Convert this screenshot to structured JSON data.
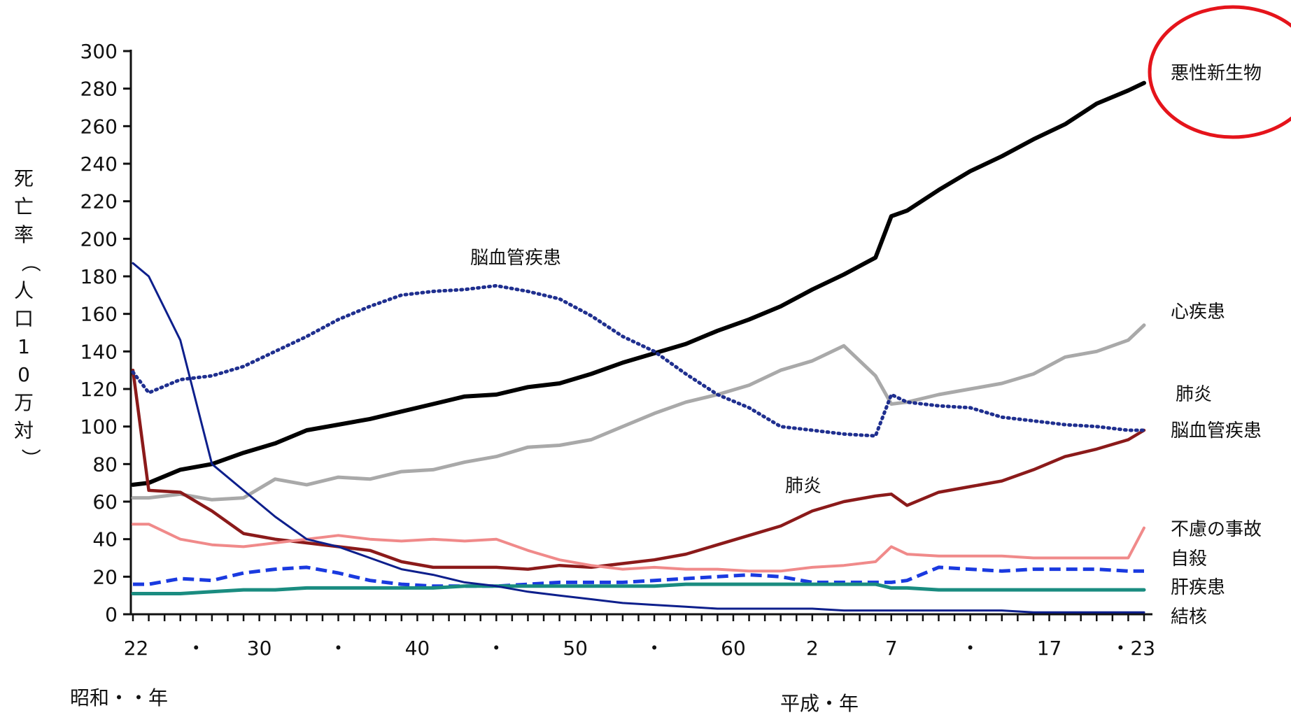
{
  "chart_data": {
    "type": "line",
    "ylabel": "死亡率（人口10万対）",
    "era_labels": {
      "showa": "昭和・・年",
      "heisei": "平成・年"
    },
    "x_tick_labels": [
      "22",
      "・",
      "30",
      "・",
      "40",
      "・",
      "50",
      "・",
      "60",
      "2",
      "7",
      "・",
      "17",
      "・23"
    ],
    "ylim": [
      0,
      300
    ],
    "yticks": [
      0,
      20,
      40,
      60,
      80,
      100,
      120,
      140,
      160,
      180,
      200,
      220,
      240,
      260,
      280,
      300
    ],
    "x": [
      1947,
      1948,
      1950,
      1952,
      1954,
      1956,
      1958,
      1960,
      1962,
      1964,
      1966,
      1968,
      1970,
      1972,
      1974,
      1976,
      1978,
      1980,
      1982,
      1984,
      1986,
      1988,
      1990,
      1992,
      1994,
      1995,
      1996,
      1998,
      2000,
      2002,
      2004,
      2006,
      2008,
      2010,
      2011
    ],
    "series": [
      {
        "name": "悪性新生物",
        "color": "#000000",
        "style": "solid",
        "width": 6,
        "values": [
          69,
          70,
          77,
          80,
          86,
          91,
          98,
          101,
          104,
          108,
          112,
          116,
          117,
          121,
          123,
          128,
          134,
          139,
          144,
          151,
          157,
          164,
          173,
          181,
          190,
          212,
          215,
          226,
          236,
          244,
          253,
          261,
          272,
          279,
          283
        ]
      },
      {
        "name": "心疾患",
        "color": "#a9a9a9",
        "style": "solid",
        "width": 5,
        "values": [
          62,
          62,
          64,
          61,
          62,
          72,
          69,
          73,
          72,
          76,
          77,
          81,
          84,
          89,
          90,
          93,
          100,
          107,
          113,
          117,
          122,
          130,
          135,
          143,
          127,
          112,
          113,
          117,
          120,
          123,
          128,
          137,
          140,
          146,
          154
        ]
      },
      {
        "name": "肺炎",
        "color": "#8b1a1a",
        "style": "solid",
        "width": 4.5,
        "values": [
          130,
          66,
          65,
          55,
          43,
          40,
          38,
          36,
          34,
          28,
          25,
          25,
          25,
          24,
          26,
          25,
          27,
          29,
          32,
          37,
          42,
          47,
          55,
          60,
          63,
          64,
          58,
          65,
          68,
          71,
          77,
          84,
          88,
          93,
          98
        ]
      },
      {
        "name": "不慮の事故",
        "color": "#f08a8a",
        "style": "solid",
        "width": 4,
        "values": [
          48,
          48,
          40,
          37,
          36,
          38,
          40,
          42,
          40,
          39,
          40,
          39,
          40,
          34,
          29,
          26,
          24,
          25,
          24,
          24,
          23,
          23,
          25,
          26,
          28,
          36,
          32,
          31,
          31,
          31,
          30,
          30,
          30,
          30,
          46
        ]
      },
      {
        "name": "脳血管疾患",
        "color": "#1f2f8f",
        "style": "dotted",
        "width": 5,
        "values": [
          129,
          118,
          125,
          127,
          132,
          140,
          148,
          157,
          164,
          170,
          172,
          173,
          175,
          172,
          168,
          159,
          148,
          140,
          128,
          117,
          110,
          100,
          98,
          96,
          95,
          117,
          113,
          111,
          110,
          105,
          103,
          101,
          100,
          98,
          98
        ]
      },
      {
        "name": "自殺",
        "color": "#1a3ae0",
        "style": "dashed",
        "width": 5,
        "values": [
          16,
          16,
          19,
          18,
          22,
          24,
          25,
          22,
          18,
          16,
          15,
          15,
          15,
          16,
          17,
          17,
          17,
          18,
          19,
          20,
          21,
          20,
          17,
          17,
          17,
          17,
          18,
          25,
          24,
          23,
          24,
          24,
          24,
          23,
          23
        ]
      },
      {
        "name": "肝疾患",
        "color": "#1a8c80",
        "style": "solid",
        "width": 5,
        "values": [
          11,
          11,
          11,
          12,
          13,
          13,
          14,
          14,
          14,
          14,
          14,
          15,
          15,
          15,
          15,
          15,
          15,
          15,
          16,
          16,
          16,
          16,
          16,
          16,
          16,
          14,
          14,
          13,
          13,
          13,
          13,
          13,
          13,
          13,
          13
        ]
      },
      {
        "name": "結核",
        "color": "#0d1f8c",
        "style": "solid",
        "width": 3,
        "values": [
          187,
          180,
          146,
          80,
          66,
          52,
          40,
          36,
          30,
          24,
          21,
          17,
          15,
          12,
          10,
          8,
          6,
          5,
          4,
          3,
          3,
          3,
          3,
          2,
          2,
          2,
          2,
          2,
          2,
          2,
          1,
          1,
          1,
          1,
          1
        ]
      }
    ],
    "right_labels": [
      "悪性新生物",
      "心疾患",
      "肺炎",
      "脳血管疾患",
      "不慮の事故",
      "自殺",
      "肝疾患",
      "結核"
    ],
    "inline_labels": [
      "脳血管疾患",
      "肺炎"
    ],
    "highlight": {
      "target": "悪性新生物",
      "shape": "ellipse",
      "color": "#e5141b"
    }
  }
}
